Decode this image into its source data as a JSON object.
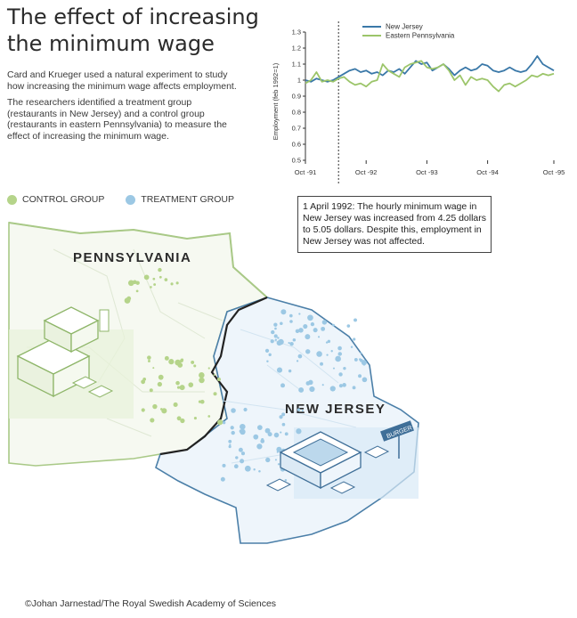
{
  "title_lines": [
    "The effect of increasing",
    "the minimum wage"
  ],
  "intro": {
    "p1": "Card and Krueger used a natural experiment to study how increasing the minimum wage affects employment.",
    "p2": "The researchers identified a treatment group (restaurants in New Jersey) and a control group (restaurants in eastern Pennsylvania) to measure the effect of increasing the minimum wage."
  },
  "legend": {
    "control": "CONTROL GROUP",
    "treatment": "TREATMENT GROUP"
  },
  "colors": {
    "nj": "#3a78a8",
    "pa": "#9cc56a",
    "nj_light": "#a9cfe6",
    "pa_light": "#cde2b2",
    "border": "#222222"
  },
  "chart_data": {
    "type": "line",
    "title": "",
    "xlabel": "",
    "ylabel": "Employment (feb 1992=1)",
    "ylim": [
      0.5,
      1.3
    ],
    "yticks": [
      "0.5",
      "0.6",
      "0.7",
      "0.8",
      "0.9",
      "1",
      "1.1",
      "1.2",
      "1.3"
    ],
    "xticks": [
      "Oct -91",
      "Oct -92",
      "Oct -93",
      "Oct -94",
      "Oct -95"
    ],
    "marker_label": "1 April 1992",
    "legend_position": "top",
    "series": [
      {
        "name": "New Jersey",
        "values": [
          1.0,
          0.99,
          1.01,
          1.0,
          0.99,
          1.0,
          1.02,
          1.04,
          1.06,
          1.07,
          1.05,
          1.06,
          1.04,
          1.05,
          1.03,
          1.06,
          1.05,
          1.07,
          1.04,
          1.08,
          1.12,
          1.1,
          1.11,
          1.06,
          1.08,
          1.1,
          1.07,
          1.03,
          1.06,
          1.08,
          1.06,
          1.07,
          1.1,
          1.09,
          1.06,
          1.05,
          1.06,
          1.08,
          1.06,
          1.05,
          1.06,
          1.1,
          1.15,
          1.1,
          1.08,
          1.06
        ]
      },
      {
        "name": "Eastern Pennsylvania",
        "values": [
          0.98,
          1.0,
          1.05,
          0.99,
          1.0,
          0.99,
          1.01,
          1.02,
          0.99,
          0.97,
          0.98,
          0.96,
          0.99,
          1.0,
          1.1,
          1.06,
          1.04,
          1.02,
          1.08,
          1.1,
          1.11,
          1.12,
          1.08,
          1.07,
          1.08,
          1.1,
          1.06,
          1.0,
          1.03,
          0.97,
          1.02,
          1.0,
          1.01,
          1.0,
          0.96,
          0.93,
          0.97,
          0.98,
          0.96,
          0.98,
          1.0,
          1.03,
          1.02,
          1.04,
          1.03,
          1.04
        ]
      }
    ]
  },
  "annotation": "1 April 1992: The hourly minimum wage in New Jersey was increased from 4.25 dollars to 5.05 dollars. Despite this, employment in New Jersey was not affected.",
  "map": {
    "pa_label": "PENNSYLVANIA",
    "nj_label": "NEW JERSEY",
    "sign_text": "BURGER"
  },
  "credit": "©Johan Jarnestad/The Royal Swedish Academy of Sciences"
}
